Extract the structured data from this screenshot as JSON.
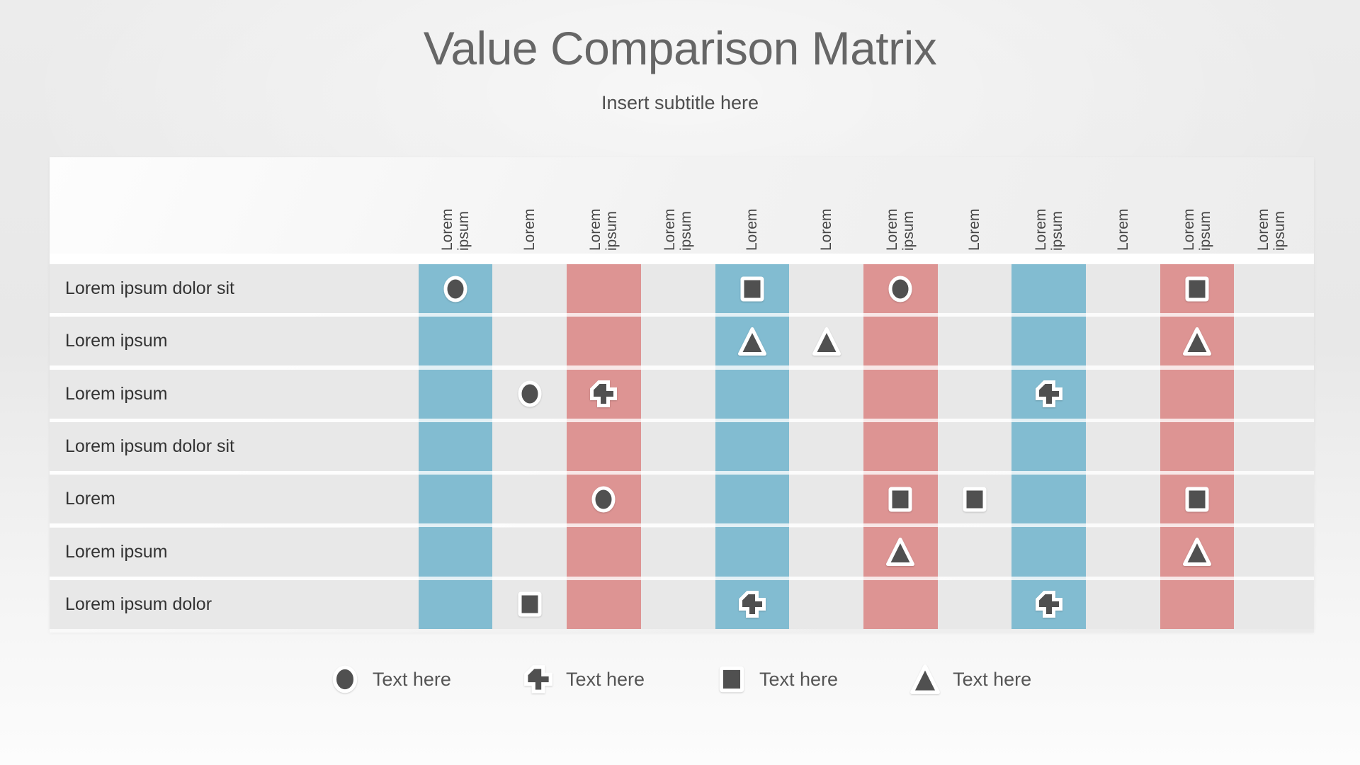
{
  "slide": {
    "title": "Value Comparison Matrix",
    "subtitle": "Insert subtitle here"
  },
  "colors": {
    "column_blue": "#82bcd1",
    "column_red": "#dd9493",
    "symbol_dark": "#505050"
  },
  "chart_data": {
    "type": "table",
    "title": "Value Comparison Matrix",
    "columns": [
      {
        "label": "Lorem ipsum",
        "band": "blue"
      },
      {
        "label": "Lorem",
        "band": "none"
      },
      {
        "label": "Lorem ipsum",
        "band": "red"
      },
      {
        "label": "Lorem ipsum",
        "band": "none"
      },
      {
        "label": "Lorem",
        "band": "blue"
      },
      {
        "label": "Lorem",
        "band": "none"
      },
      {
        "label": "Lorem ipsum",
        "band": "red"
      },
      {
        "label": "Lorem",
        "band": "none"
      },
      {
        "label": "Lorem ipsum",
        "band": "blue"
      },
      {
        "label": "Lorem",
        "band": "none"
      },
      {
        "label": "Lorem ipsum",
        "band": "red"
      },
      {
        "label": "Lorem ipsum",
        "band": "none"
      }
    ],
    "rows": [
      {
        "label": "Lorem ipsum dolor sit",
        "cells": [
          "circle",
          "",
          "",
          "",
          "square",
          "",
          "circle",
          "",
          "",
          "",
          "square",
          ""
        ]
      },
      {
        "label": "Lorem ipsum",
        "cells": [
          "",
          "",
          "",
          "",
          "triangle",
          "triangle",
          "",
          "",
          "",
          "",
          "triangle",
          ""
        ]
      },
      {
        "label": "Lorem ipsum",
        "cells": [
          "",
          "circle",
          "cross",
          "",
          "",
          "",
          "",
          "",
          "cross",
          "",
          "",
          ""
        ]
      },
      {
        "label": "Lorem ipsum dolor sit",
        "cells": [
          "",
          "",
          "",
          "",
          "",
          "",
          "",
          "",
          "",
          "",
          "",
          ""
        ]
      },
      {
        "label": "Lorem",
        "cells": [
          "",
          "",
          "circle",
          "",
          "",
          "",
          "square",
          "square",
          "",
          "",
          "square",
          ""
        ]
      },
      {
        "label": "Lorem ipsum",
        "cells": [
          "",
          "",
          "",
          "",
          "",
          "",
          "triangle",
          "",
          "",
          "",
          "triangle",
          ""
        ]
      },
      {
        "label": "Lorem ipsum dolor",
        "cells": [
          "",
          "square",
          "",
          "",
          "cross",
          "",
          "",
          "",
          "cross",
          "",
          "",
          ""
        ]
      }
    ]
  },
  "legend": {
    "items": [
      {
        "symbol": "circle",
        "label": "Text here"
      },
      {
        "symbol": "cross",
        "label": "Text here"
      },
      {
        "symbol": "square",
        "label": "Text here"
      },
      {
        "symbol": "triangle",
        "label": "Text here"
      }
    ]
  }
}
